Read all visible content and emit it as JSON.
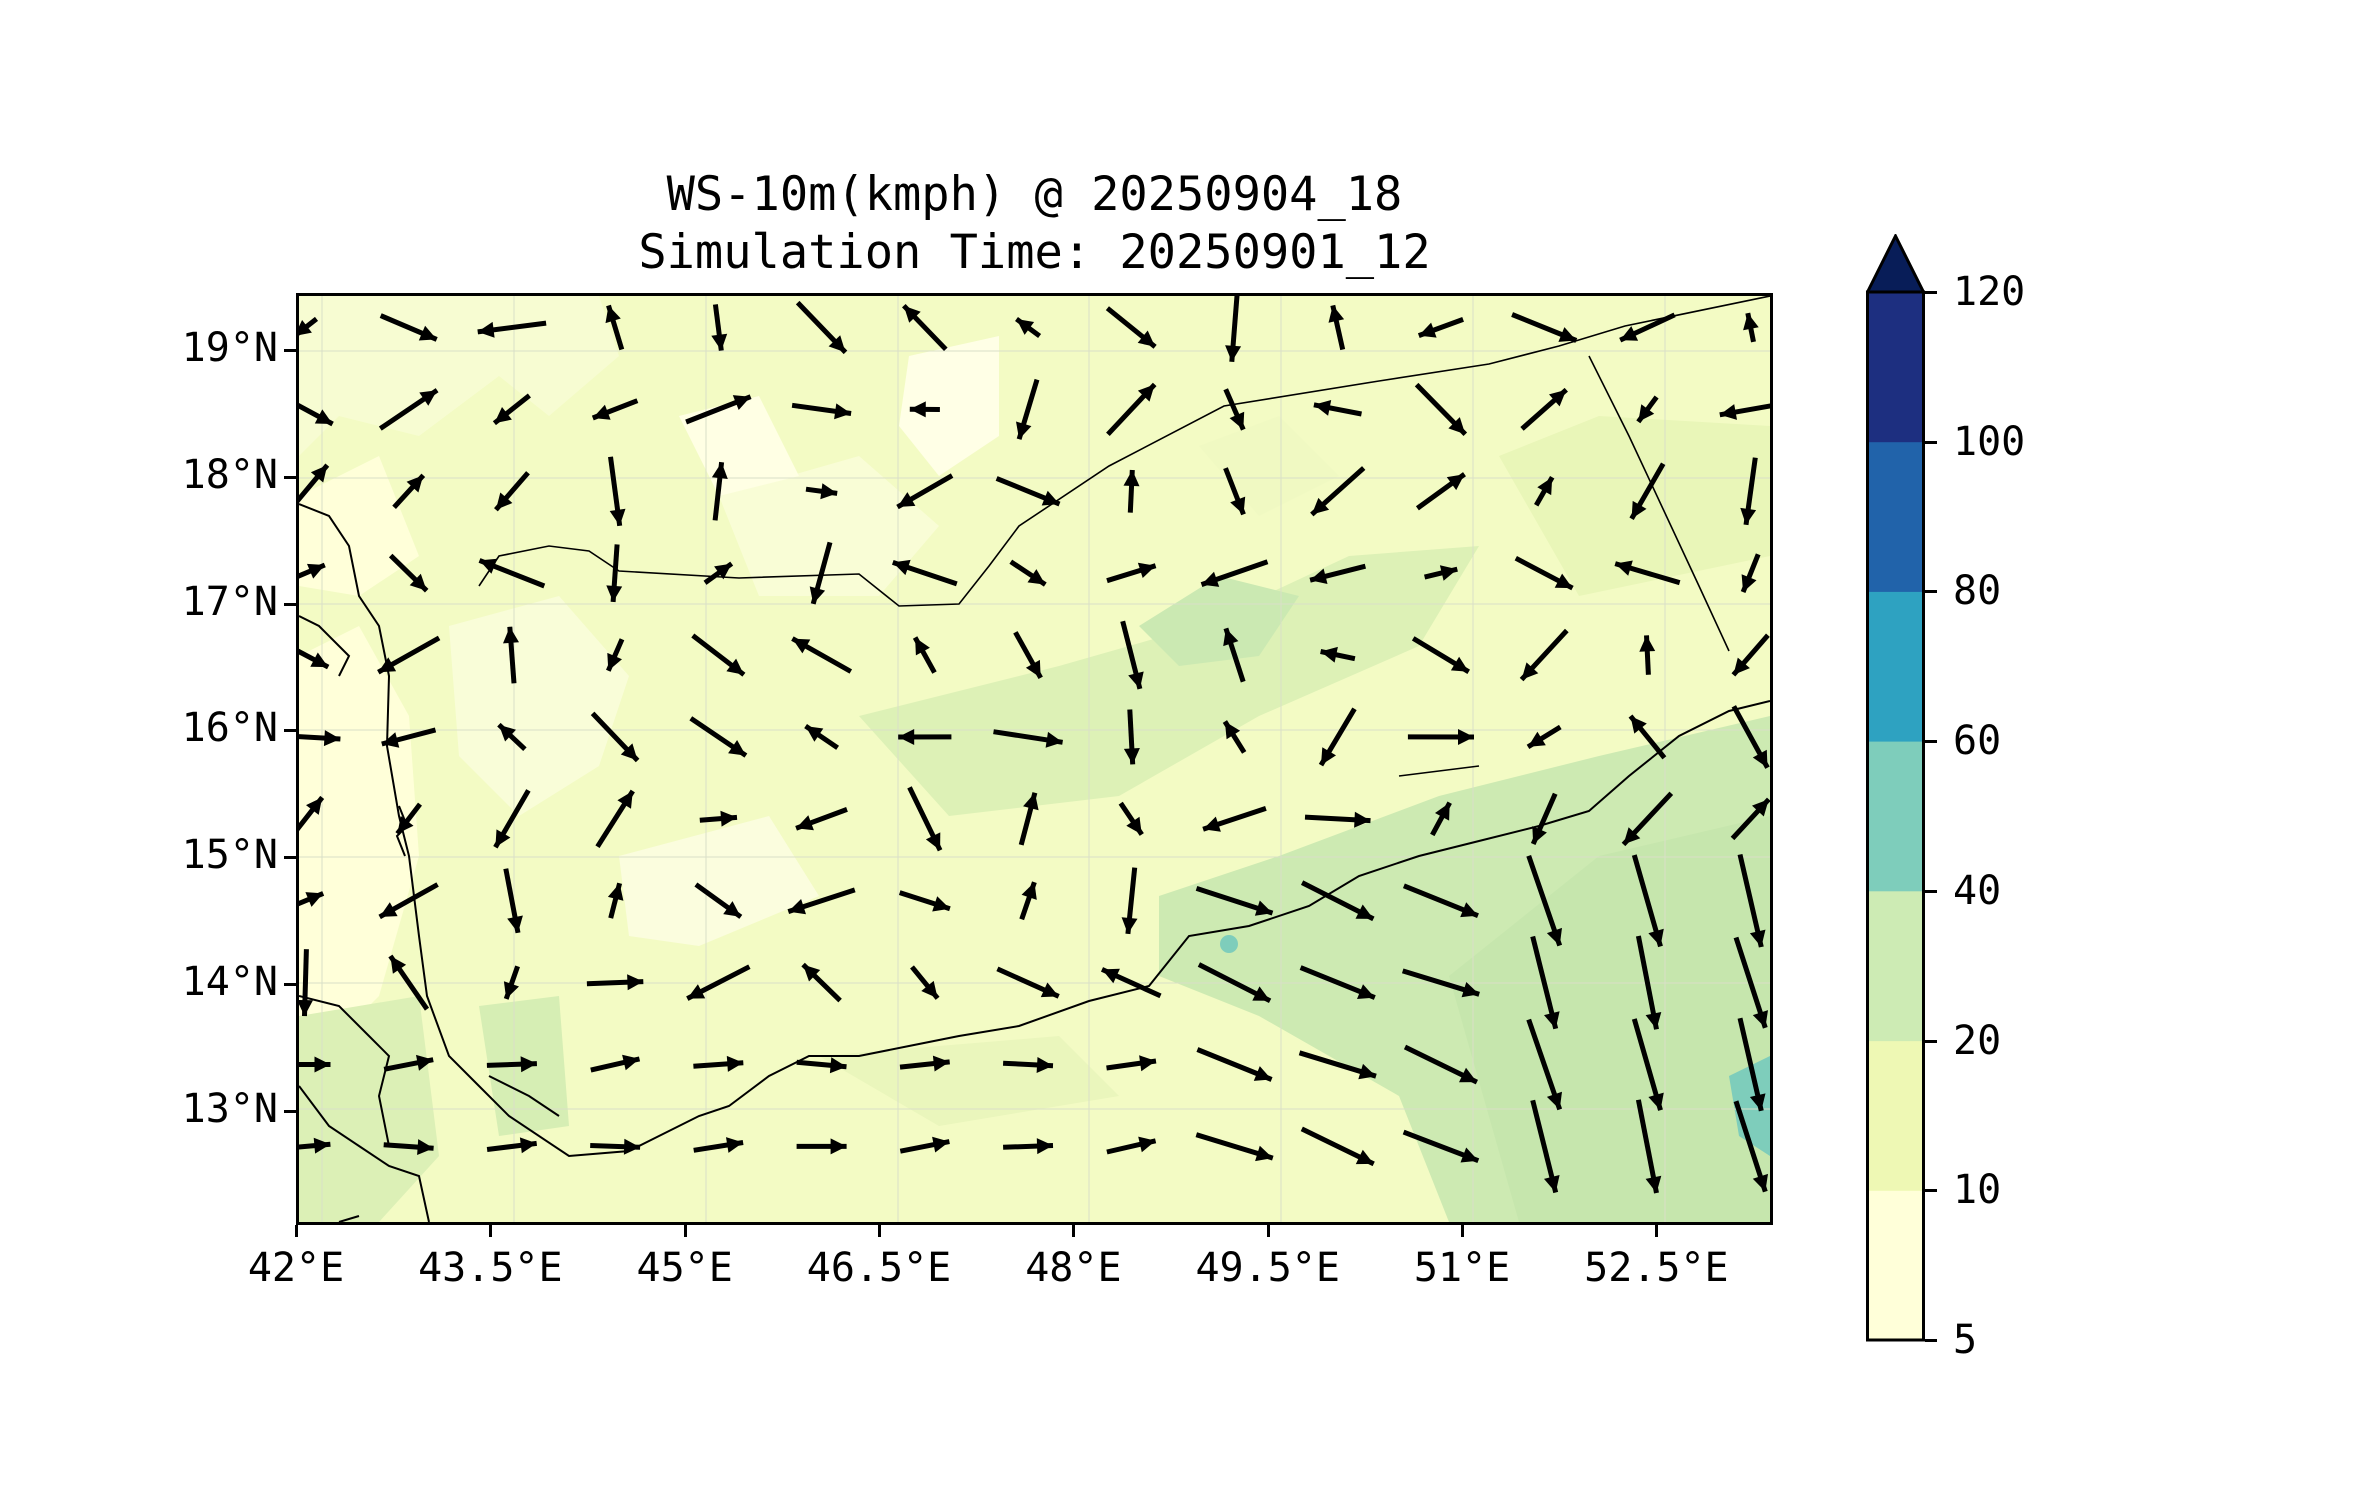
{
  "title": {
    "line1": "WS-10m(kmph) @ 20250904_18",
    "line2": "Simulation Time: 20250901_12"
  },
  "map": {
    "lon_range": [
      42.0,
      53.4
    ],
    "lat_range": [
      12.1,
      19.45
    ],
    "lat_ticks": [
      {
        "value": 19,
        "label": "19°N"
      },
      {
        "value": 18,
        "label": "18°N"
      },
      {
        "value": 17,
        "label": "17°N"
      },
      {
        "value": 16,
        "label": "16°N"
      },
      {
        "value": 15,
        "label": "15°N"
      },
      {
        "value": 14,
        "label": "14°N"
      },
      {
        "value": 13,
        "label": "13°N"
      }
    ],
    "lon_ticks": [
      {
        "value": 42.0,
        "label": "42°E"
      },
      {
        "value": 43.5,
        "label": "43.5°E"
      },
      {
        "value": 45.0,
        "label": "45°E"
      },
      {
        "value": 46.5,
        "label": "46.5°E"
      },
      {
        "value": 48.0,
        "label": "48°E"
      },
      {
        "value": 49.5,
        "label": "49.5°E"
      },
      {
        "value": 51.0,
        "label": "51°E"
      },
      {
        "value": 52.5,
        "label": "52.5°E"
      }
    ],
    "vector_field": {
      "description": "10m wind vectors",
      "lon_step": 0.8,
      "lat_step": 0.65
    }
  },
  "colorbar": {
    "levels": [
      5,
      10,
      20,
      40,
      60,
      80,
      100,
      120
    ],
    "labels": [
      "5",
      "10",
      "20",
      "40",
      "60",
      "80",
      "100",
      "120"
    ],
    "colors": [
      "#ffffd9",
      "#eef8b4",
      "#cdebb4",
      "#7ecdbb",
      "#2ea2c1",
      "#2163aa",
      "#1d2f80",
      "#081d58"
    ],
    "extend": "max"
  }
}
